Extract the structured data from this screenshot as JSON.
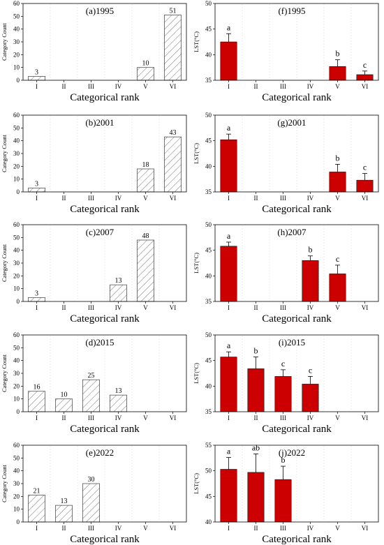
{
  "categories": [
    "I",
    "II",
    "III",
    "IV",
    "V",
    "VI"
  ],
  "x_axis_title": "Categorical rank",
  "colors": {
    "lst_bar": "#cc0000",
    "count_bar_stroke": "#555555",
    "axis": "#000000"
  },
  "chart_data": [
    {
      "id": "a",
      "type": "bar",
      "title": "(a)1995",
      "ylabel": "Category Count",
      "xlabel": "Categorical rank",
      "ylim": [
        0,
        60
      ],
      "yticks": [
        0,
        10,
        20,
        30,
        40,
        50,
        60
      ],
      "categories": [
        "I",
        "II",
        "III",
        "IV",
        "V",
        "VI"
      ],
      "values": [
        3,
        0,
        0,
        0,
        10,
        51
      ],
      "data_labels": [
        "3",
        "",
        "",
        "",
        "10",
        "51"
      ],
      "pattern": "hatched"
    },
    {
      "id": "f",
      "type": "bar",
      "title": "(f)1995",
      "ylabel": "LST(°C)",
      "xlabel": "Categorical rank",
      "ylim": [
        35,
        50
      ],
      "yticks": [
        35,
        40,
        45,
        50
      ],
      "categories": [
        "I",
        "II",
        "III",
        "IV",
        "V",
        "VI"
      ],
      "values": [
        42.5,
        null,
        null,
        null,
        37.7,
        36.1
      ],
      "errors": [
        1.6,
        null,
        null,
        null,
        1.3,
        0.7
      ],
      "letters": [
        "a",
        "",
        "",
        "",
        "b",
        "c"
      ]
    },
    {
      "id": "b",
      "type": "bar",
      "title": "(b)2001",
      "ylabel": "Category Count",
      "xlabel": "Categorical rank",
      "ylim": [
        0,
        60
      ],
      "yticks": [
        0,
        10,
        20,
        30,
        40,
        50,
        60
      ],
      "categories": [
        "I",
        "II",
        "III",
        "IV",
        "V",
        "VI"
      ],
      "values": [
        3,
        0,
        0,
        0,
        18,
        43
      ],
      "data_labels": [
        "3",
        "",
        "",
        "",
        "18",
        "43"
      ],
      "pattern": "hatched"
    },
    {
      "id": "g",
      "type": "bar",
      "title": "(g)2001",
      "ylabel": "LST(°C)",
      "xlabel": "Categorical rank",
      "ylim": [
        35,
        50
      ],
      "yticks": [
        35,
        40,
        45,
        50
      ],
      "categories": [
        "I",
        "II",
        "III",
        "IV",
        "V",
        "VI"
      ],
      "values": [
        45.2,
        null,
        null,
        null,
        38.9,
        37.3
      ],
      "errors": [
        1.1,
        null,
        null,
        null,
        1.5,
        1.3
      ],
      "letters": [
        "a",
        "",
        "",
        "",
        "b",
        "c"
      ]
    },
    {
      "id": "c",
      "type": "bar",
      "title": "(c)2007",
      "ylabel": "Category Count",
      "xlabel": "Categorical rank",
      "ylim": [
        0,
        60
      ],
      "yticks": [
        0,
        10,
        20,
        30,
        40,
        50,
        60
      ],
      "categories": [
        "I",
        "II",
        "III",
        "IV",
        "V",
        "VI"
      ],
      "values": [
        3,
        0,
        0,
        13,
        48,
        0
      ],
      "data_labels": [
        "3",
        "",
        "",
        "13",
        "48",
        ""
      ],
      "pattern": "hatched"
    },
    {
      "id": "h",
      "type": "bar",
      "title": "(h)2007",
      "ylabel": "LST(°C)",
      "xlabel": "Categorical rank",
      "ylim": [
        35,
        50
      ],
      "yticks": [
        35,
        40,
        45,
        50
      ],
      "categories": [
        "I",
        "II",
        "III",
        "IV",
        "V",
        "VI"
      ],
      "values": [
        45.8,
        null,
        null,
        43.0,
        40.4,
        null
      ],
      "errors": [
        0.8,
        null,
        null,
        0.9,
        1.7,
        null
      ],
      "letters": [
        "a",
        "",
        "",
        "b",
        "c",
        ""
      ]
    },
    {
      "id": "d",
      "type": "bar",
      "title": "(d)2015",
      "ylabel": "Category Count",
      "xlabel": "Categorical rank",
      "ylim": [
        0,
        60
      ],
      "yticks": [
        0,
        10,
        20,
        30,
        40,
        50,
        60
      ],
      "categories": [
        "I",
        "II",
        "III",
        "IV",
        "V",
        "VI"
      ],
      "values": [
        16,
        10,
        25,
        13,
        0,
        0
      ],
      "data_labels": [
        "16",
        "10",
        "25",
        "13",
        "",
        ""
      ],
      "pattern": "hatched"
    },
    {
      "id": "i",
      "type": "bar",
      "title": "(i)2015",
      "ylabel": "LST(°C)",
      "xlabel": "Categorical rank",
      "ylim": [
        35,
        50
      ],
      "yticks": [
        35,
        40,
        45,
        50
      ],
      "categories": [
        "I",
        "II",
        "III",
        "IV",
        "V",
        "VI"
      ],
      "values": [
        45.7,
        43.4,
        41.9,
        40.4,
        null,
        null
      ],
      "errors": [
        1.0,
        2.3,
        1.3,
        1.5,
        null,
        null
      ],
      "letters": [
        "a",
        "b",
        "c",
        "c",
        "",
        ""
      ]
    },
    {
      "id": "e",
      "type": "bar",
      "title": "(e)2022",
      "ylabel": "Category Count",
      "xlabel": "Categorical rank",
      "ylim": [
        0,
        60
      ],
      "yticks": [
        0,
        10,
        20,
        30,
        40,
        50,
        60
      ],
      "categories": [
        "I",
        "II",
        "III",
        "IV",
        "V",
        "VI"
      ],
      "values": [
        21,
        13,
        30,
        0,
        0,
        0
      ],
      "data_labels": [
        "21",
        "13",
        "30",
        "",
        "",
        ""
      ],
      "pattern": "hatched"
    },
    {
      "id": "j",
      "type": "bar",
      "title": "(j)2022",
      "ylabel": "LST(°C)",
      "xlabel": "Categorical rank",
      "ylim": [
        40,
        55
      ],
      "yticks": [
        40,
        45,
        50,
        55
      ],
      "categories": [
        "I",
        "II",
        "III",
        "IV",
        "V",
        "VI"
      ],
      "values": [
        50.3,
        49.7,
        48.3,
        null,
        null,
        null
      ],
      "errors": [
        2.3,
        3.6,
        2.6,
        null,
        null,
        null
      ],
      "letters": [
        "a",
        "ab",
        "b",
        "",
        "",
        ""
      ]
    }
  ]
}
